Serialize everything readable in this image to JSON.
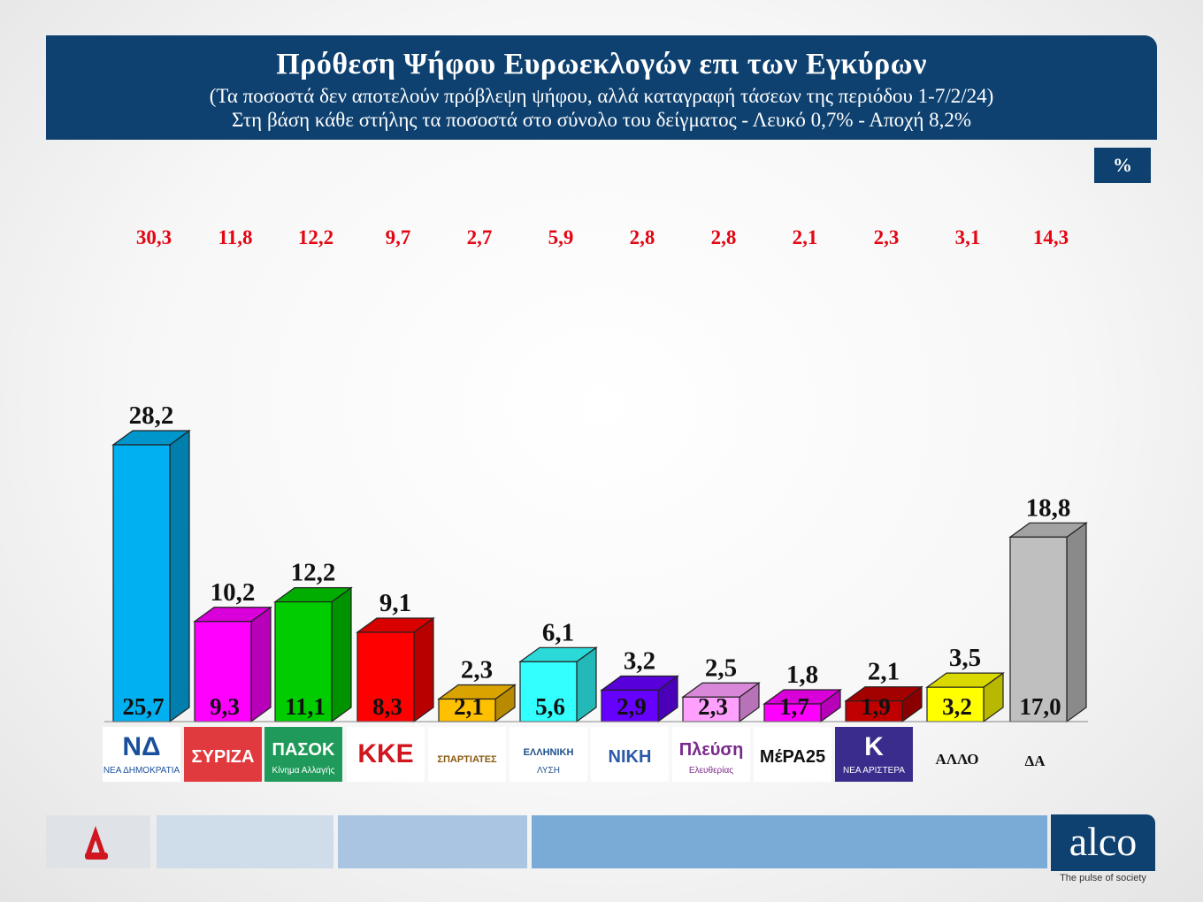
{
  "header": {
    "title": "Πρόθεση Ψήφου Ευρωεκλογών επι των Εγκύρων",
    "subtitle1": "(Τα ποσοστά δεν αποτελούν πρόβλεψη ψήφου, αλλά καταγραφή τάσεων της περιόδου  1-7/2/24)",
    "subtitle2": "Στη βάση κάθε στήλης τα ποσοστά στο σύνολο του δείγματος - Λευκό 0,7% - Αποχή 8,2%"
  },
  "unit_label": "%",
  "footer": {
    "brand": "alco",
    "tagline": "The pulse of society"
  },
  "colors": {
    "header_bg": "#0e4170",
    "prev_label": "#e30613"
  },
  "chart_data": {
    "type": "bar",
    "categories": [
      "ΝΔ",
      "ΣΥΡΙΖΑ",
      "ΠΑΣΟΚ",
      "ΚΚΕ",
      "Σπαρτιάτες",
      "Ελληνική Λύση",
      "ΝΙΚΗ",
      "Πλεύση Ελευθερίας",
      "ΜέΡΑ25",
      "Νέα Αριστερά",
      "ΑΛΛΟ",
      "ΔΑ"
    ],
    "category_labels_printed": [
      "ΑΛΛΟ",
      "ΔΑ"
    ],
    "series": [
      {
        "name": "valid",
        "values": [
          28.2,
          10.2,
          12.2,
          9.1,
          2.3,
          6.1,
          3.2,
          2.5,
          1.8,
          2.1,
          3.5,
          18.8
        ],
        "labels": [
          "28,2",
          "10,2",
          "12,2",
          "9,1",
          "2,3",
          "6,1",
          "3,2",
          "2,5",
          "1,8",
          "2,1",
          "3,5",
          "18,8"
        ]
      },
      {
        "name": "total",
        "values": [
          25.7,
          9.3,
          11.1,
          8.3,
          2.1,
          5.6,
          2.9,
          2.3,
          1.7,
          1.9,
          3.2,
          17.0
        ],
        "labels": [
          "25,7",
          "9,3",
          "11,1",
          "8,3",
          "2,1",
          "5,6",
          "2,9",
          "2,3",
          "1,7",
          "1,9",
          "3,2",
          "17,0"
        ]
      },
      {
        "name": "previous",
        "values": [
          30.3,
          11.8,
          12.2,
          9.7,
          2.7,
          5.9,
          2.8,
          2.8,
          2.1,
          2.3,
          3.1,
          14.3
        ],
        "labels": [
          "30,3",
          "11,8",
          "12,2",
          "9,7",
          "2,7",
          "5,9",
          "2,8",
          "2,8",
          "2,1",
          "2,3",
          "3,1",
          "14,3"
        ]
      }
    ],
    "bar_colors": [
      "#00b0f0",
      "#ff00ff",
      "#00cc00",
      "#ff0000",
      "#ffc000",
      "#33ffff",
      "#6600ff",
      "#ffa0ff",
      "#ff00ff",
      "#c00000",
      "#ffff00",
      "#bfbfbf"
    ],
    "logos": [
      {
        "text": "ΝΔ",
        "sub": "ΝΕΑ ΔΗΜΟΚΡΑΤΙΑ",
        "bg": "#ffffff",
        "fg": "#1a4f9c"
      },
      {
        "text": "ΣΥΡΙΖΑ",
        "sub": "",
        "bg": "#e03a3e",
        "fg": "#ffffff"
      },
      {
        "text": "ΠΑΣΟΚ",
        "sub": "Κίνημα Αλλαγής",
        "bg": "#1f9a5a",
        "fg": "#ffffff"
      },
      {
        "text": "ΚΚΕ",
        "sub": "",
        "bg": "#ffffff",
        "fg": "#d0161e"
      },
      {
        "text": "ΣΠΑΡΤΙΑΤΕΣ",
        "sub": "",
        "bg": "#ffffff",
        "fg": "#8a5a10"
      },
      {
        "text": "ΕΛΛΗΝΙΚΗ",
        "sub": "ΛΥΣΗ",
        "bg": "#ffffff",
        "fg": "#1d4f8c"
      },
      {
        "text": "ΝΙΚΗ",
        "sub": "",
        "bg": "#ffffff",
        "fg": "#2b5aa8"
      },
      {
        "text": "Πλεύση",
        "sub": "Ελευθερίας",
        "bg": "#ffffff",
        "fg": "#7a2a8c"
      },
      {
        "text": "ΜέΡΑ25",
        "sub": "",
        "bg": "#ffffff",
        "fg": "#111111"
      },
      {
        "text": "Κ",
        "sub": "ΝΕΑ ΑΡΙΣΤΕΡΑ",
        "bg": "#3a2c8c",
        "fg": "#ffffff"
      }
    ],
    "ylim": [
      0,
      30
    ]
  }
}
